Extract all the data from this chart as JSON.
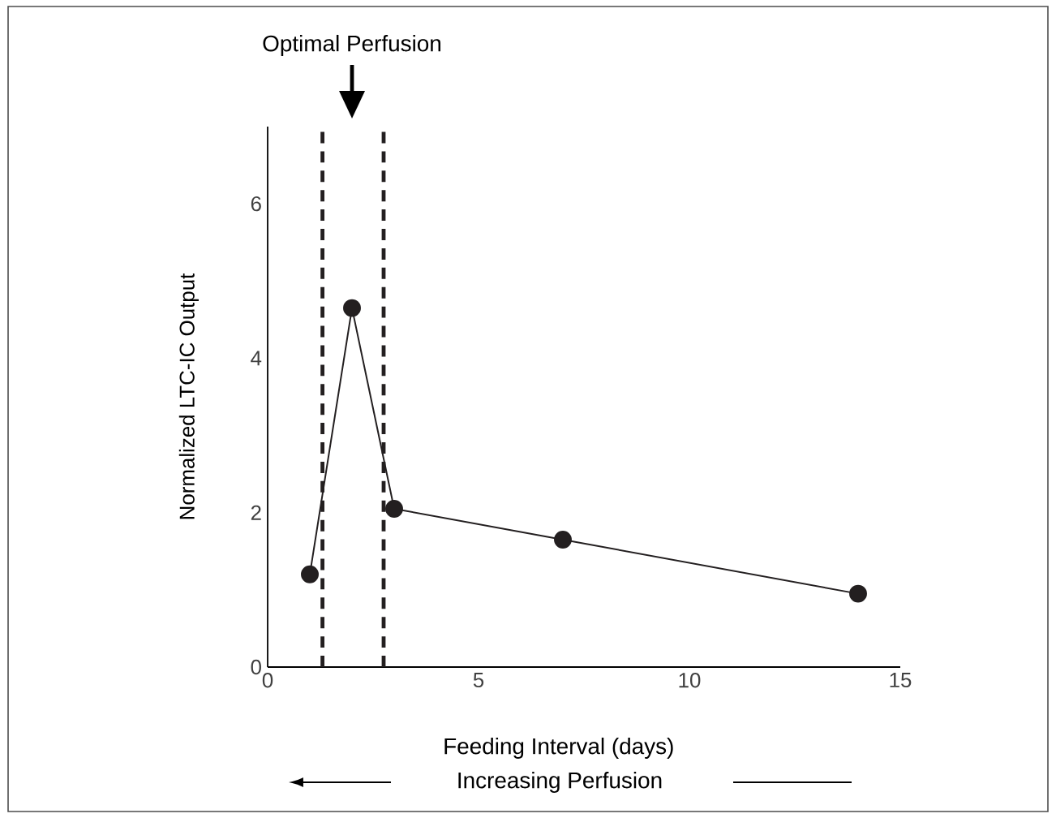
{
  "chart_data": {
    "type": "line",
    "xlabel": "Feeding Interval (days)",
    "ylabel": "Normalized LTC-IC Output",
    "x": [
      1,
      2,
      3,
      7,
      14
    ],
    "series": [
      {
        "color": "#231f20",
        "values": [
          1.2,
          4.65,
          2.05,
          1.65,
          0.95
        ]
      }
    ],
    "xlim": [
      0,
      15
    ],
    "xticks": [
      0,
      5,
      10,
      15
    ],
    "ylim": [
      0,
      7
    ],
    "yticks": [
      0,
      2,
      4,
      6
    ],
    "marker": "circle",
    "line_style": "solid",
    "grid": false,
    "ref_lines": [
      {
        "axis": "x",
        "value": 1.3,
        "color": "#231f20",
        "line_style": "dashed"
      },
      {
        "axis": "x",
        "value": 2.75,
        "color": "#231f20",
        "line_style": "dashed"
      }
    ],
    "annotations": [
      "Optimal Perfusion",
      "Increasing Perfusion"
    ]
  }
}
